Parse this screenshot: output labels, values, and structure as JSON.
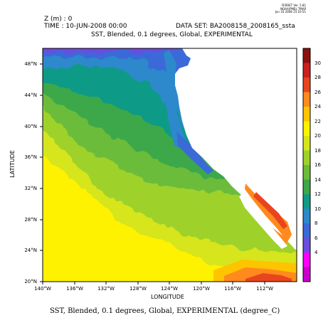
{
  "header": {
    "z_label": "Z (m) : 0",
    "time_label": "TIME : 10-JUN-2008 00:00",
    "dataset_label": "DATA SET: BA2008158_2008165_ssta",
    "plot_title": "SST, Blended, 0.1 degrees, Global, EXPERIMENTAL",
    "stamp_lines": [
      "FERRET Ver. 5.81",
      "NOAA/PMEL TMAP",
      "Jun 10 2008 15:10:51"
    ]
  },
  "axes": {
    "ylabel": "LATITUDE",
    "xlabel": "LONGITUDE",
    "y_ticks": [
      "48°N",
      "44°N",
      "40°N",
      "36°N",
      "32°N",
      "28°N",
      "24°N",
      "20°N"
    ],
    "y_values": [
      48,
      44,
      40,
      36,
      32,
      28,
      24,
      20
    ],
    "x_ticks": [
      "140°W",
      "136°W",
      "132°W",
      "128°W",
      "124°W",
      "120°W",
      "116°W",
      "112°W"
    ],
    "x_values": [
      -140,
      -136,
      -132,
      -128,
      -124,
      -120,
      -116,
      -112
    ],
    "lon_range": [
      -140,
      -110
    ],
    "lat_range": [
      20,
      50
    ]
  },
  "colorbar": {
    "labels": [
      "30",
      "28",
      "26",
      "24",
      "22",
      "20",
      "18",
      "16",
      "14",
      "12",
      "10",
      "8",
      "6",
      "4"
    ],
    "levels": [
      4,
      6,
      8,
      10,
      12,
      14,
      16,
      18,
      20,
      22,
      24,
      26,
      28,
      30
    ],
    "colors": [
      "#cc00cc",
      "#ff00ff",
      "#6a4de0",
      "#3a6ad8",
      "#2d88cc",
      "#119b87",
      "#3da84a",
      "#6cbc3a",
      "#9ed22a",
      "#d6e51a",
      "#fff200",
      "#ffc400",
      "#ff8a1e",
      "#e8451e",
      "#cc1f1f",
      "#8c1010"
    ]
  },
  "footer": {
    "caption": "SST, Blended, 0.1 degrees, Global, EXPERIMENTAL (degree_C)"
  },
  "map_colors": {
    "land": "#ffffff",
    "frame": "#000000"
  }
}
